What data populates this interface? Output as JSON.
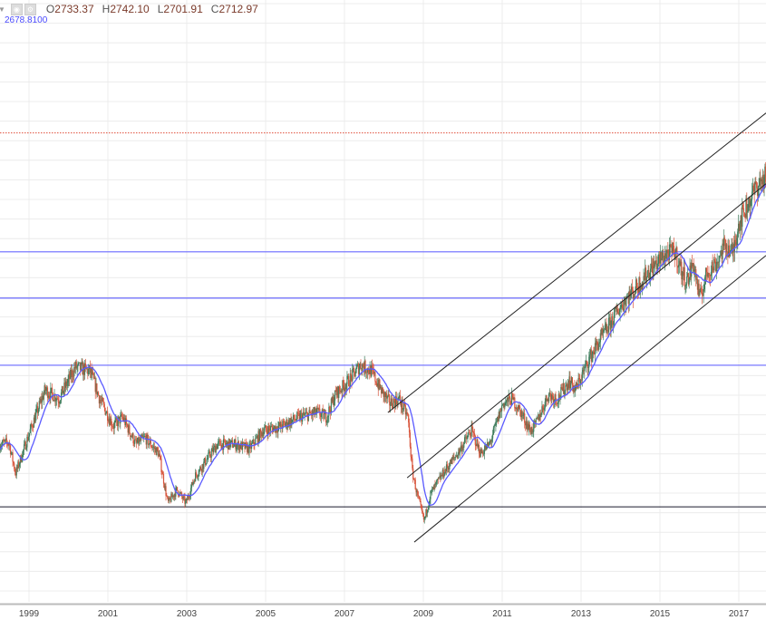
{
  "legend": {
    "o_label": "O",
    "o_value": "2733.37",
    "h_label": "H",
    "h_value": "2742.10",
    "l_label": "L",
    "l_value": "2701.91",
    "c_label": "C",
    "c_value": "2712.97",
    "ma_value": "2678.8100",
    "icons": [
      "collapse-triangle-icon",
      "eye-icon",
      "gear-icon"
    ]
  },
  "colors": {
    "up": "#3f7d5c",
    "down": "#d8553c",
    "ma": "#5a5aff",
    "support_lines": "#6a6aff",
    "base_line": "#333344",
    "channel": "#222222",
    "target_line": "#e0503c",
    "grid": "#ececec"
  },
  "chart_data": {
    "type": "candlestick",
    "title": "",
    "xlabel": "",
    "ylabel": "",
    "x_ticks": [
      "1999",
      "2001",
      "2003",
      "2005",
      "2007",
      "2009",
      "2011",
      "2013",
      "2015",
      "2017"
    ],
    "xlim": [
      1998.26,
      2017.69
    ],
    "ylim": [
      420,
      3360
    ],
    "grid": true,
    "candle_interval": "weekly",
    "ma_period": 20,
    "trend_points": [
      [
        1998.26,
        1190
      ],
      [
        1998.49,
        1199
      ],
      [
        1998.66,
        1048
      ],
      [
        1999.07,
        1279
      ],
      [
        1999.41,
        1456
      ],
      [
        1999.76,
        1412
      ],
      [
        2000.17,
        1567
      ],
      [
        2000.56,
        1545
      ],
      [
        2000.79,
        1412
      ],
      [
        2001.14,
        1279
      ],
      [
        2001.37,
        1323
      ],
      [
        2001.71,
        1190
      ],
      [
        2001.94,
        1221
      ],
      [
        2002.29,
        1146
      ],
      [
        2002.52,
        902
      ],
      [
        2002.75,
        969
      ],
      [
        2002.98,
        902
      ],
      [
        2003.21,
        1035
      ],
      [
        2003.78,
        1190
      ],
      [
        2004.24,
        1190
      ],
      [
        2004.59,
        1168
      ],
      [
        2004.93,
        1257
      ],
      [
        2005.39,
        1279
      ],
      [
        2005.85,
        1323
      ],
      [
        2006.31,
        1345
      ],
      [
        2006.54,
        1323
      ],
      [
        2006.77,
        1434
      ],
      [
        2007.11,
        1501
      ],
      [
        2007.41,
        1580
      ],
      [
        2007.69,
        1545
      ],
      [
        2007.92,
        1456
      ],
      [
        2008.15,
        1390
      ],
      [
        2008.38,
        1412
      ],
      [
        2008.61,
        1323
      ],
      [
        2008.72,
        1057
      ],
      [
        2008.84,
        947
      ],
      [
        2009.02,
        814
      ],
      [
        2009.18,
        947
      ],
      [
        2009.53,
        1057
      ],
      [
        2009.87,
        1146
      ],
      [
        2010.22,
        1257
      ],
      [
        2010.45,
        1146
      ],
      [
        2010.68,
        1190
      ],
      [
        2011.02,
        1390
      ],
      [
        2011.25,
        1412
      ],
      [
        2011.48,
        1345
      ],
      [
        2011.71,
        1257
      ],
      [
        2011.83,
        1279
      ],
      [
        2012.17,
        1434
      ],
      [
        2012.4,
        1412
      ],
      [
        2012.7,
        1501
      ],
      [
        2012.86,
        1456
      ],
      [
        2013.21,
        1611
      ],
      [
        2013.55,
        1722
      ],
      [
        2013.9,
        1833
      ],
      [
        2014.13,
        1900
      ],
      [
        2014.36,
        1944
      ],
      [
        2014.7,
        2033
      ],
      [
        2015.16,
        2121
      ],
      [
        2015.39,
        2130
      ],
      [
        2015.55,
        2033
      ],
      [
        2015.69,
        1988
      ],
      [
        2015.85,
        2077
      ],
      [
        2016.01,
        1900
      ],
      [
        2016.2,
        2033
      ],
      [
        2016.43,
        2077
      ],
      [
        2016.66,
        2166
      ],
      [
        2016.84,
        2121
      ],
      [
        2017.0,
        2276
      ],
      [
        2017.23,
        2365
      ],
      [
        2017.46,
        2454
      ],
      [
        2017.69,
        2498
      ]
    ],
    "horizontal_lines": [
      {
        "name": "resistance-2130",
        "price": 2130,
        "style": "support"
      },
      {
        "name": "resistance-1904",
        "price": 1904,
        "style": "support"
      },
      {
        "name": "resistance-1576",
        "price": 1576,
        "style": "support"
      },
      {
        "name": "base-884",
        "price": 884,
        "style": "base"
      },
      {
        "name": "target-2711",
        "price": 2711,
        "style": "target"
      }
    ],
    "channel_lines": [
      {
        "name": "channel-upper",
        "from": [
          2008.1,
          1345
        ],
        "to": [
          2017.69,
          2808
        ]
      },
      {
        "name": "channel-middle",
        "from": [
          2008.59,
          1026
        ],
        "to": [
          2017.69,
          2463
        ]
      },
      {
        "name": "channel-lower",
        "from": [
          2008.77,
          712
        ],
        "to": [
          2017.69,
          2112
        ]
      }
    ]
  }
}
